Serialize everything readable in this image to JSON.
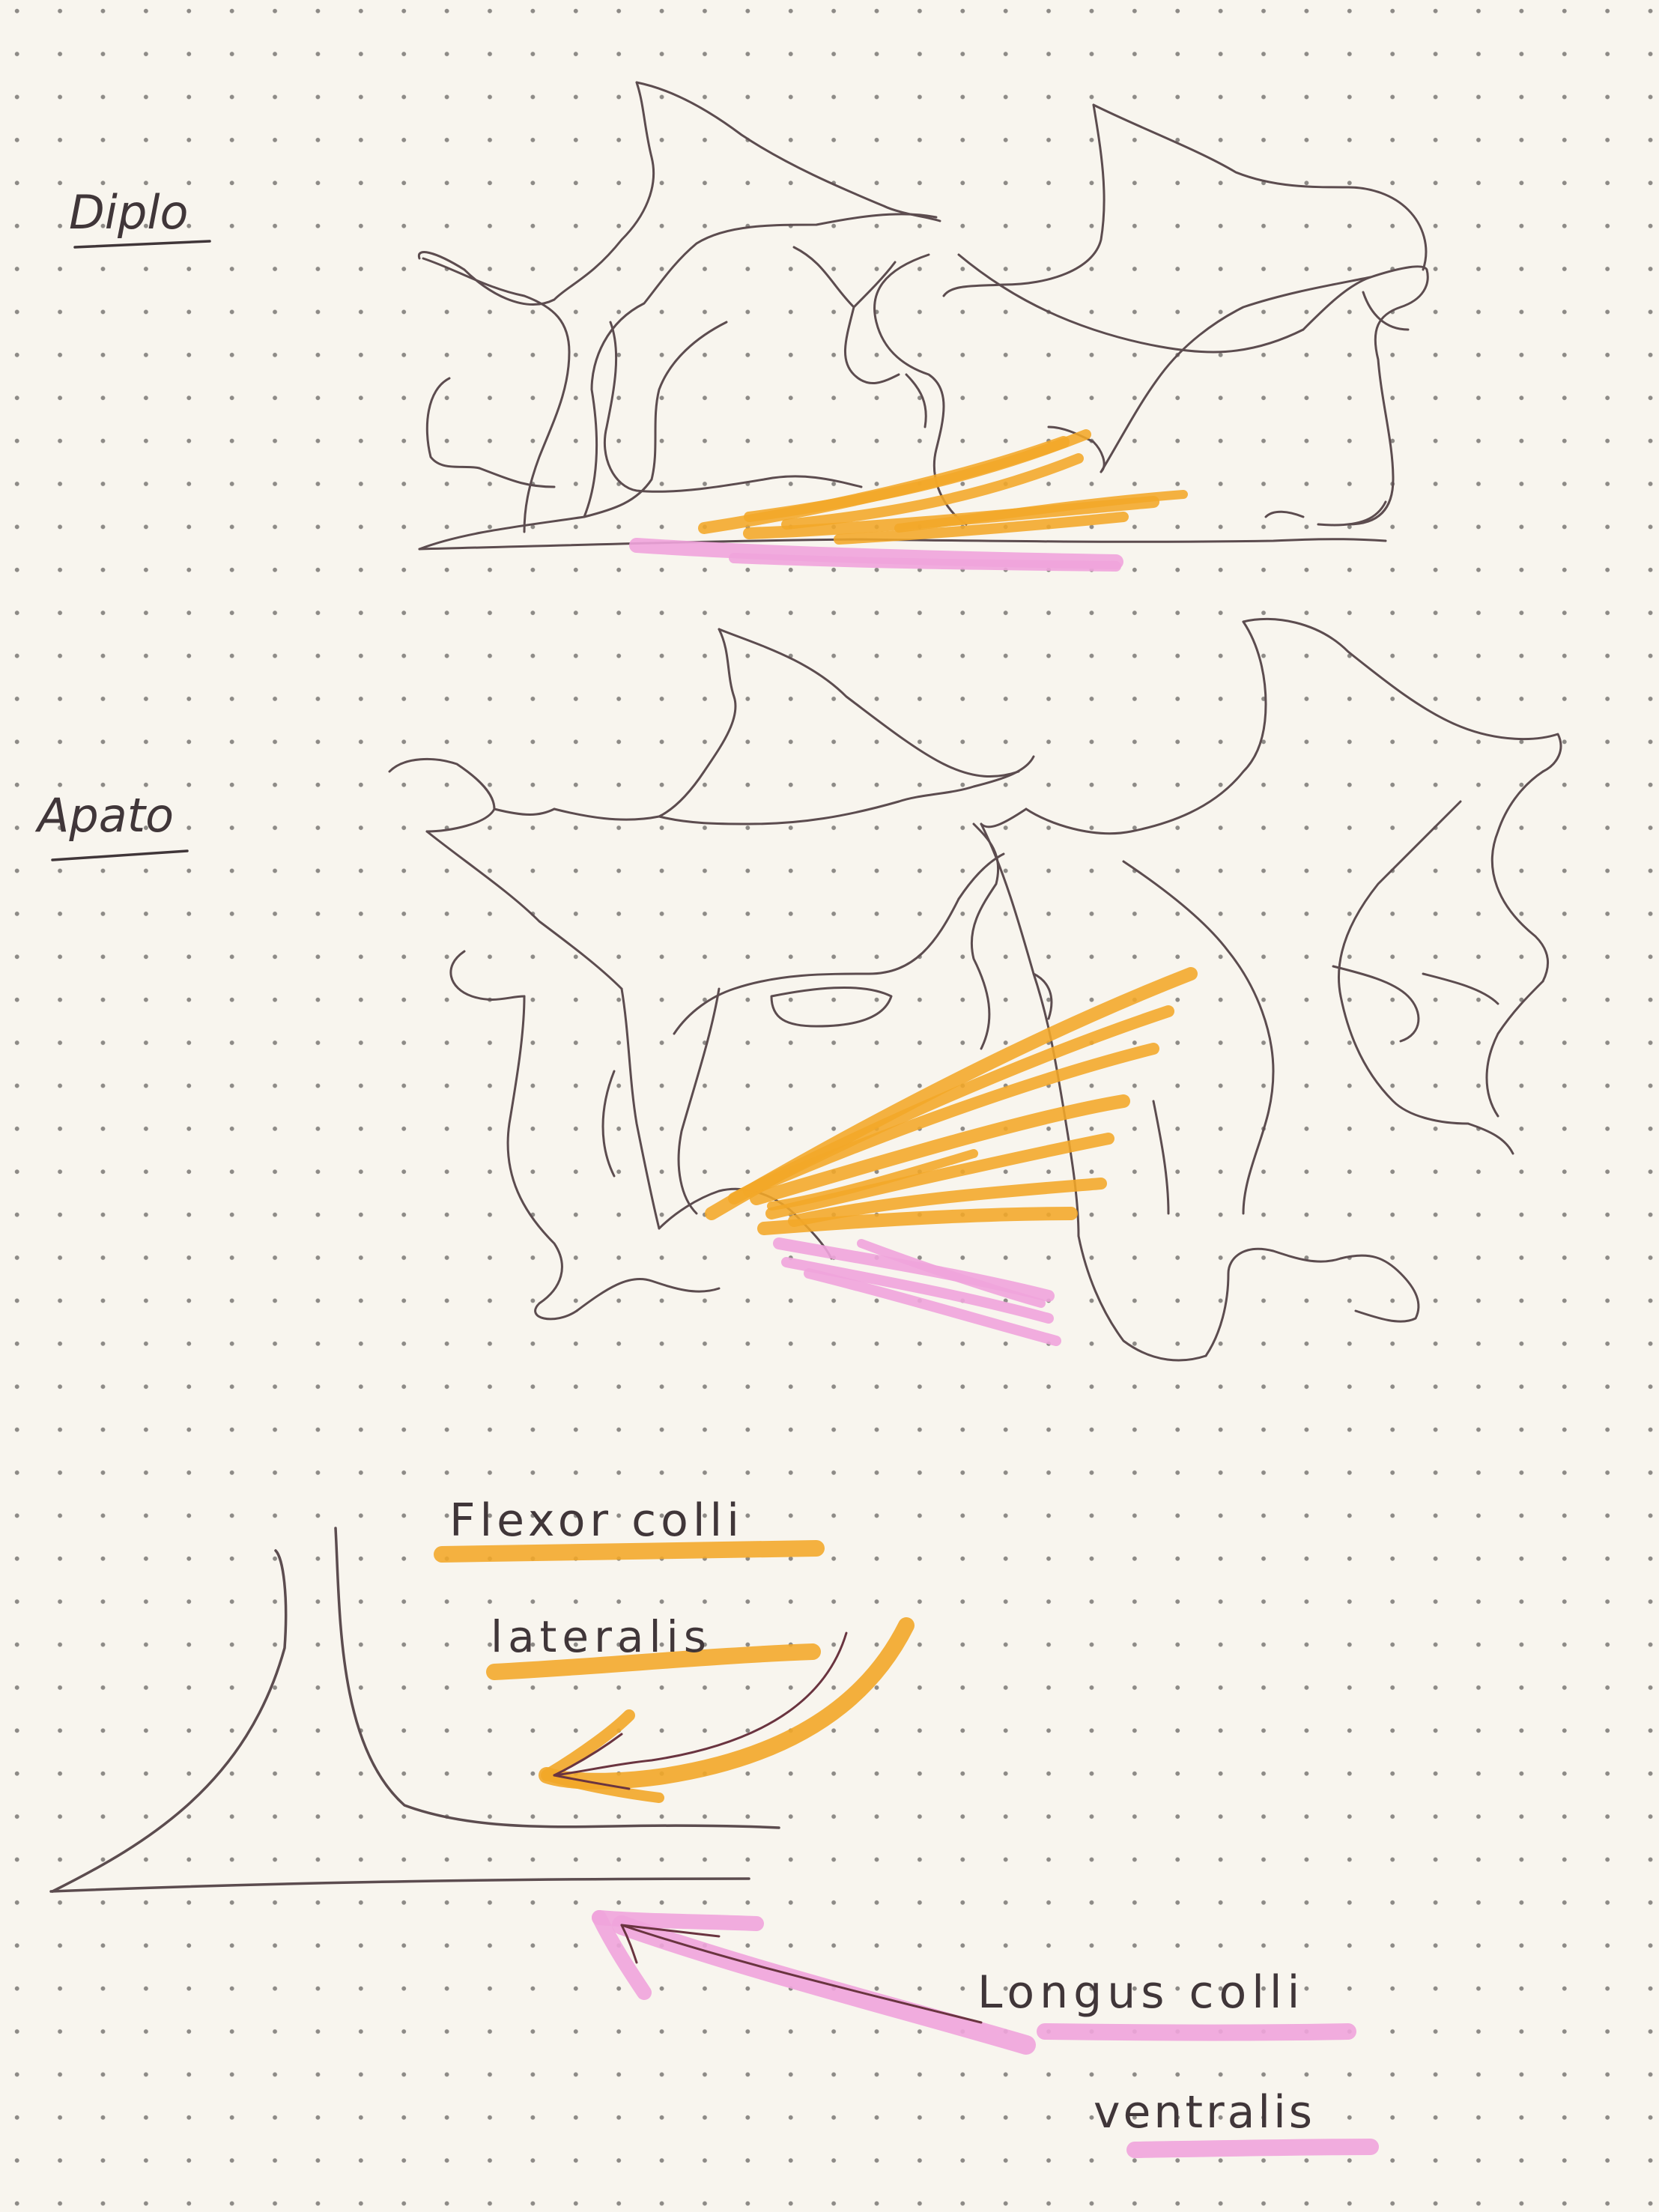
{
  "labels": {
    "diplo": "Diplo",
    "apato": "Apato",
    "flexor_line1": "Flexor colli",
    "flexor_line2": "lateralis",
    "longus_line1": "Longus colli",
    "longus_line2": "ventralis"
  },
  "colors": {
    "paper": "#f8f5ee",
    "dots": "#8d8a86",
    "ink": "#5c4c4f",
    "text_ink": "#403639",
    "orange_marker": "#f2a728",
    "pink_marker": "#f0a4dc"
  },
  "icons": {
    "flexor_arrow": "curved-arrow-icon",
    "longus_arrow": "straight-arrow-icon",
    "spine_diagram": "vertebra-outline-icon"
  }
}
